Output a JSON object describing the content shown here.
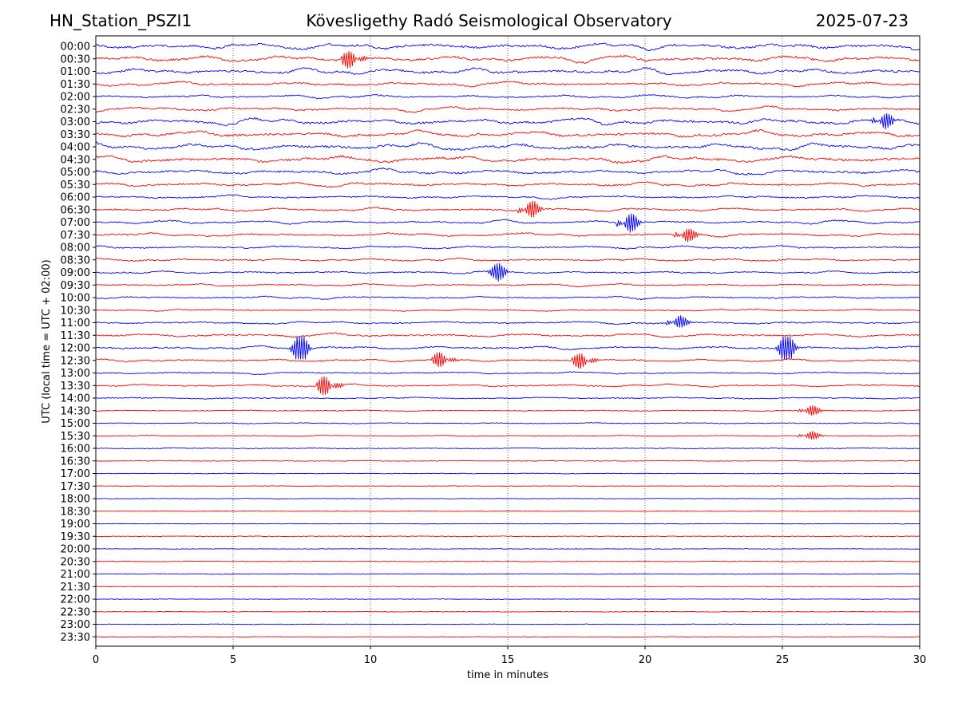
{
  "header": {
    "station": "HN_Station_PSZI1",
    "observatory": "Kövesligethy Radó Seismological Observatory",
    "date": "2025-07-23"
  },
  "chart_data": {
    "type": "line",
    "subtype": "helicorder",
    "xlabel": "time in minutes",
    "ylabel": "UTC (local time = UTC + 02:00)",
    "xlim": [
      0,
      30
    ],
    "xticks": [
      0,
      5,
      10,
      15,
      20,
      25,
      30
    ],
    "grid": "vertical dotted at x ticks",
    "colors": [
      "#0000ff",
      "#ff0000"
    ],
    "rows": [
      "00:00",
      "00:30",
      "01:00",
      "01:30",
      "02:00",
      "02:30",
      "03:00",
      "03:30",
      "04:00",
      "04:30",
      "05:00",
      "05:30",
      "06:00",
      "06:30",
      "07:00",
      "07:30",
      "08:00",
      "08:30",
      "09:00",
      "09:30",
      "10:00",
      "10:30",
      "11:00",
      "11:30",
      "12:00",
      "12:30",
      "13:00",
      "13:30",
      "14:00",
      "14:30",
      "15:00",
      "15:30",
      "16:00",
      "16:30",
      "17:00",
      "17:30",
      "18:00",
      "18:30",
      "19:00",
      "19:30",
      "20:00",
      "20:30",
      "21:00",
      "21:30",
      "22:00",
      "22:30",
      "23:00",
      "23:30"
    ],
    "activity": [
      0.9,
      0.9,
      0.8,
      0.55,
      0.45,
      0.6,
      0.85,
      0.85,
      0.9,
      0.9,
      0.7,
      0.55,
      0.4,
      0.45,
      0.45,
      0.45,
      0.4,
      0.35,
      0.3,
      0.3,
      0.3,
      0.25,
      0.35,
      0.4,
      0.45,
      0.35,
      0.25,
      0.35,
      0.2,
      0.12,
      0.12,
      0.1,
      0.1,
      0.06,
      0.05,
      0.04,
      0.04,
      0.04,
      0.03,
      0.04,
      0.03,
      0.05,
      0.04,
      0.04,
      0.03,
      0.04,
      0.03,
      0.03
    ],
    "events": [
      {
        "row": "12:00",
        "minute": 7.3,
        "amp": 2.2
      },
      {
        "row": "12:00",
        "minute": 25.0,
        "amp": 2.2
      },
      {
        "row": "13:30",
        "minute": 8.3,
        "amp": 1.8
      },
      {
        "row": "07:00",
        "minute": 19.2,
        "amp": 1.8
      },
      {
        "row": "06:30",
        "minute": 15.6,
        "amp": 1.6
      },
      {
        "row": "12:30",
        "minute": 17.6,
        "amp": 1.5
      },
      {
        "row": "12:30",
        "minute": 12.5,
        "amp": 1.4
      },
      {
        "row": "00:30",
        "minute": 9.2,
        "amp": 1.6
      },
      {
        "row": "03:00",
        "minute": 28.5,
        "amp": 1.5
      },
      {
        "row": "11:00",
        "minute": 21.0,
        "amp": 1.2
      },
      {
        "row": "07:30",
        "minute": 21.3,
        "amp": 1.3
      },
      {
        "row": "09:00",
        "minute": 14.5,
        "amp": 1.2
      },
      {
        "row": "14:30",
        "minute": 25.8,
        "amp": 1.0
      },
      {
        "row": "15:30",
        "minute": 25.8,
        "amp": 0.8
      }
    ]
  }
}
